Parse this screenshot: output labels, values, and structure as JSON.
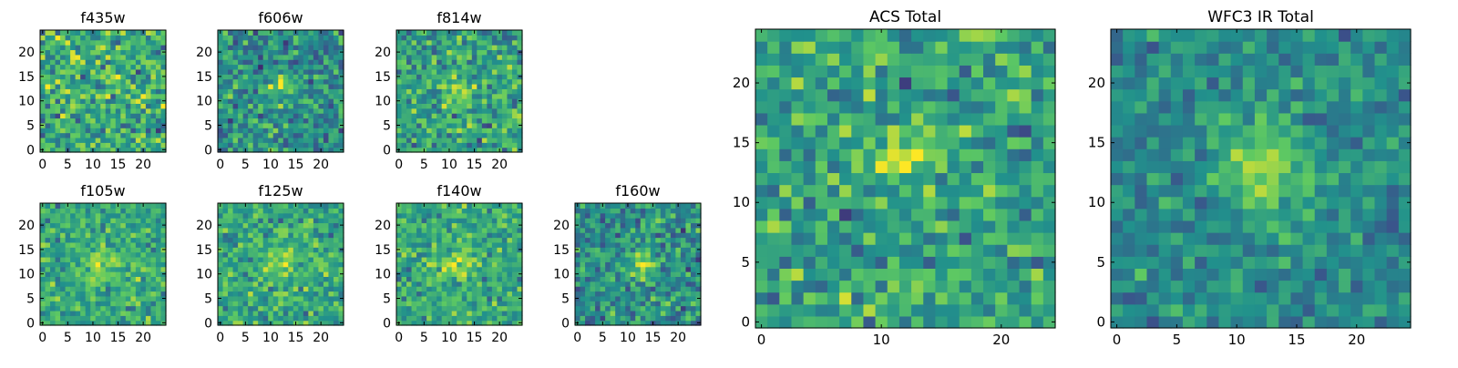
{
  "figure": {
    "colormap": "viridis",
    "colormap_stops": [
      "#440154",
      "#3b528b",
      "#21918c",
      "#5ec962",
      "#fde725"
    ]
  },
  "chart_data": [
    {
      "type": "heatmap",
      "title": "f435w",
      "grid_size": 25,
      "xticks": [
        0,
        5,
        10,
        15,
        20
      ],
      "yticks": [
        0,
        5,
        10,
        15,
        20
      ],
      "xlim": [
        -0.5,
        24.5
      ],
      "ylim": [
        -0.5,
        24.5
      ],
      "source_center": [
        12,
        11
      ],
      "source_strength": 0.08,
      "source_sigma": 2.2,
      "base_level": 0.62,
      "noise": 0.2,
      "seed": 11
    },
    {
      "type": "heatmap",
      "title": "f606w",
      "grid_size": 25,
      "xticks": [
        0,
        5,
        10,
        15,
        20
      ],
      "yticks": [
        0,
        5,
        10,
        15,
        20
      ],
      "xlim": [
        -0.5,
        24.5
      ],
      "ylim": [
        -0.5,
        24.5
      ],
      "source_center": [
        12,
        13
      ],
      "source_strength": 0.28,
      "source_sigma": 1.8,
      "base_level": 0.5,
      "noise": 0.18,
      "seed": 23
    },
    {
      "type": "heatmap",
      "title": "f814w",
      "grid_size": 25,
      "xticks": [
        0,
        5,
        10,
        15,
        20
      ],
      "yticks": [
        0,
        5,
        10,
        15,
        20
      ],
      "xlim": [
        -0.5,
        24.5
      ],
      "ylim": [
        -0.5,
        24.5
      ],
      "source_center": [
        12,
        12
      ],
      "source_strength": 0.3,
      "source_sigma": 1.8,
      "base_level": 0.58,
      "noise": 0.18,
      "seed": 37
    },
    {
      "type": "heatmap",
      "title": "f105w",
      "grid_size": 25,
      "xticks": [
        0,
        5,
        10,
        15,
        20
      ],
      "yticks": [
        0,
        5,
        10,
        15,
        20
      ],
      "xlim": [
        -0.5,
        24.5
      ],
      "ylim": [
        -0.5,
        24.5
      ],
      "source_center": [
        12,
        12
      ],
      "source_strength": 0.25,
      "source_sigma": 2.5,
      "base_level": 0.6,
      "noise": 0.15,
      "seed": 41
    },
    {
      "type": "heatmap",
      "title": "f125w",
      "grid_size": 25,
      "xticks": [
        0,
        5,
        10,
        15,
        20
      ],
      "yticks": [
        0,
        5,
        10,
        15,
        20
      ],
      "xlim": [
        -0.5,
        24.5
      ],
      "ylim": [
        -0.5,
        24.5
      ],
      "source_center": [
        12,
        12
      ],
      "source_strength": 0.2,
      "source_sigma": 2.5,
      "base_level": 0.6,
      "noise": 0.15,
      "seed": 53
    },
    {
      "type": "heatmap",
      "title": "f140w",
      "grid_size": 25,
      "xticks": [
        0,
        5,
        10,
        15,
        20
      ],
      "yticks": [
        0,
        5,
        10,
        15,
        20
      ],
      "xlim": [
        -0.5,
        24.5
      ],
      "ylim": [
        -0.5,
        24.5
      ],
      "source_center": [
        11,
        12
      ],
      "source_strength": 0.25,
      "source_sigma": 2.5,
      "base_level": 0.6,
      "noise": 0.15,
      "seed": 67
    },
    {
      "type": "heatmap",
      "title": "f160w",
      "grid_size": 25,
      "xticks": [
        0,
        5,
        10,
        15,
        20
      ],
      "yticks": [
        0,
        5,
        10,
        15,
        20
      ],
      "xlim": [
        -0.5,
        24.5
      ],
      "ylim": [
        -0.5,
        24.5
      ],
      "source_center": [
        13,
        12
      ],
      "source_strength": 0.35,
      "source_sigma": 2.0,
      "base_level": 0.5,
      "noise": 0.17,
      "seed": 79
    },
    {
      "type": "heatmap",
      "title": "ACS Total",
      "grid_size": 25,
      "xticks": [
        0,
        10,
        20
      ],
      "yticks": [
        0,
        5,
        10,
        15,
        20
      ],
      "xlim": [
        -0.5,
        24.5
      ],
      "ylim": [
        -0.5,
        24.5
      ],
      "source_center": [
        12,
        14
      ],
      "source_strength": 0.28,
      "source_sigma": 1.8,
      "base_level": 0.58,
      "noise": 0.17,
      "seed": 97
    },
    {
      "type": "heatmap",
      "title": "WFC3 IR Total",
      "grid_size": 25,
      "xticks": [
        0,
        5,
        10,
        15,
        20
      ],
      "yticks": [
        0,
        5,
        10,
        15,
        20
      ],
      "xlim": [
        -0.5,
        24.5
      ],
      "ylim": [
        -0.5,
        24.5
      ],
      "source_center": [
        12,
        13
      ],
      "source_strength": 0.4,
      "source_sigma": 2.5,
      "base_level": 0.48,
      "noise": 0.12,
      "seed": 103
    }
  ]
}
